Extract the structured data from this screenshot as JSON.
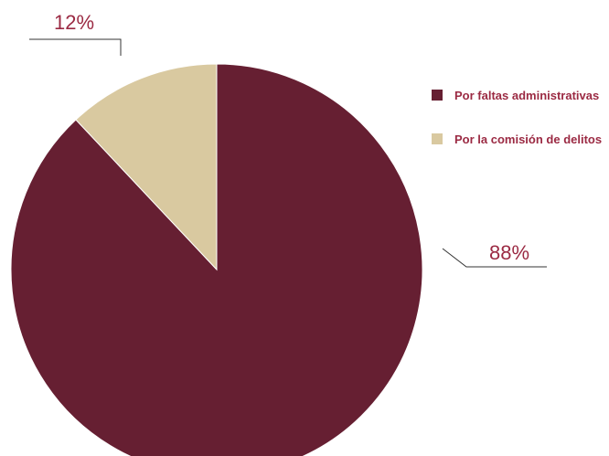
{
  "colors": {
    "primary": "#661f32",
    "secondary": "#d9c9a0",
    "label": "#9b2a43",
    "leader": "#333333"
  },
  "chart_data": {
    "type": "pie",
    "categories": [
      "Por faltas administrativas",
      "Por la comisión de delitos"
    ],
    "values": [
      88,
      12
    ],
    "value_labels": [
      "88%",
      "12%"
    ],
    "title": "",
    "legend_position": "right"
  }
}
